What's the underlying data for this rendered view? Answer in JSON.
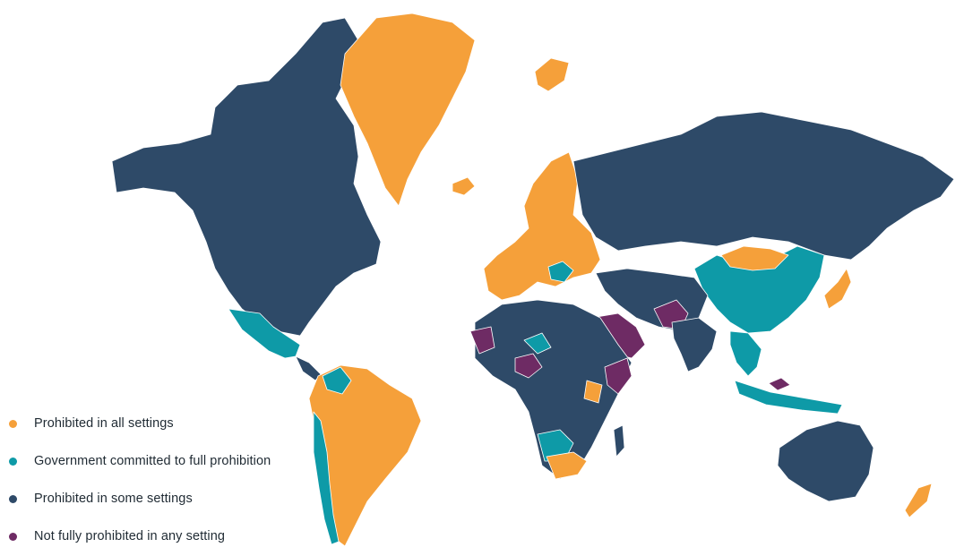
{
  "colors": {
    "all": "#f5a03a",
    "committed": "#0e9aa7",
    "some": "#2e4a68",
    "none": "#6e2b64"
  },
  "legend": [
    {
      "key": "all",
      "label": "Prohibited in all settings"
    },
    {
      "key": "committed",
      "label": "Government committed to full prohibition"
    },
    {
      "key": "some",
      "label": "Prohibited in some settings"
    },
    {
      "key": "none",
      "label": "Not fully prohibited in any setting"
    }
  ]
}
